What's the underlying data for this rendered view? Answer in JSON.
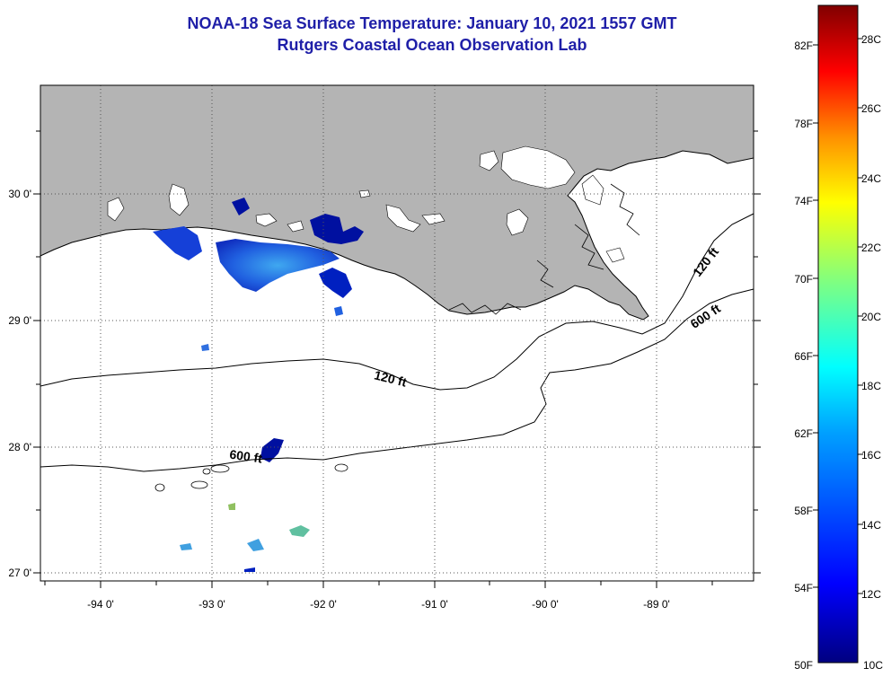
{
  "header": {
    "title": "NOAA-18 Sea Surface Temperature:  January 10, 2021 1557 GMT",
    "subtitle": "Rutgers Coastal Ocean Observation Lab"
  },
  "map": {
    "lat_ticks": [
      "30 0'",
      "29 0'",
      "28 0'",
      "27 0'"
    ],
    "lon_ticks": [
      "-94 0'",
      "-93 0'",
      "-92 0'",
      "-91 0'",
      "-90 0'",
      "-89 0'"
    ],
    "contour_labels": [
      "120 ft",
      "120 ft",
      "600 ft",
      "600 ft"
    ],
    "land_color": "#b4b4b4",
    "water_color": "#ffffff"
  },
  "colorbar": {
    "fahrenheit": [
      "82F",
      "78F",
      "74F",
      "70F",
      "66F",
      "62F",
      "58F",
      "54F",
      "50F"
    ],
    "celsius": [
      "28C",
      "26C",
      "24C",
      "22C",
      "20C",
      "18C",
      "16C",
      "14C",
      "12C",
      "10C"
    ],
    "colors": [
      "#800000",
      "#ff0000",
      "#ff8000",
      "#ffff00",
      "#80ff80",
      "#00ffff",
      "#0080ff",
      "#0000ff",
      "#000080"
    ]
  }
}
